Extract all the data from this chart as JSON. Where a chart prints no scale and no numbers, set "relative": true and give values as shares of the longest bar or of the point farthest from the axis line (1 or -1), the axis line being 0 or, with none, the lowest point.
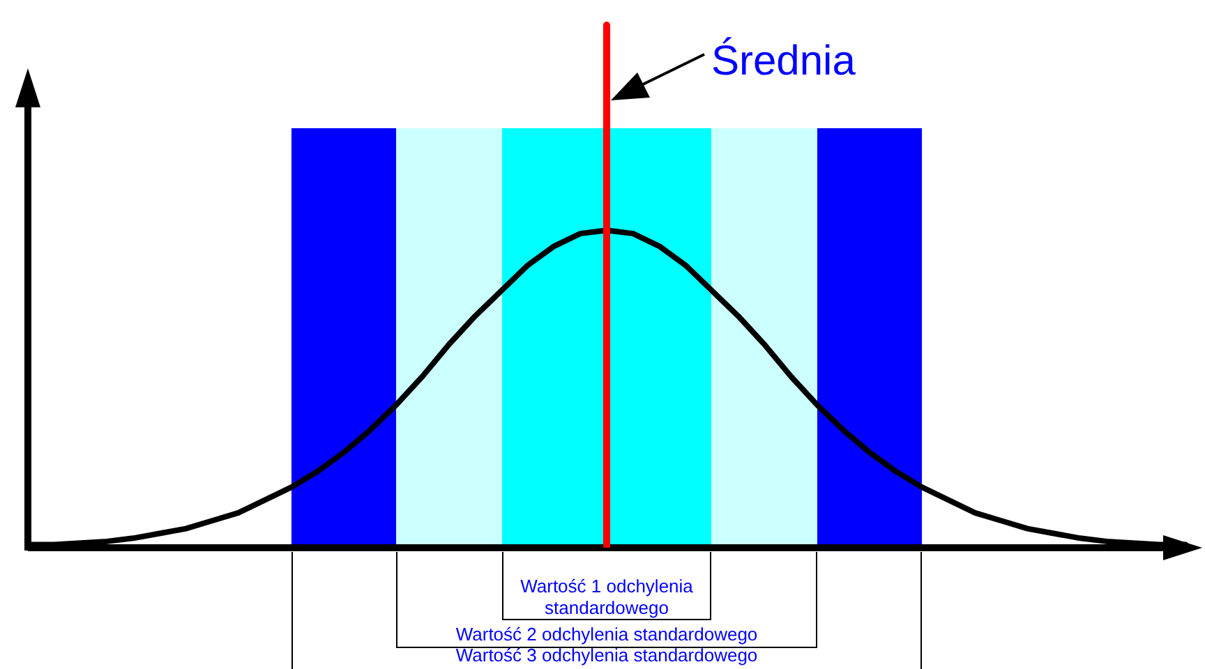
{
  "chart_data": {
    "type": "line",
    "relative": true,
    "legend": false,
    "marker": "none",
    "line_style": "solid",
    "categories": [
      null,
      null,
      null,
      null,
      null,
      null,
      null,
      null,
      null,
      null,
      null,
      null,
      null,
      null,
      null,
      null,
      null,
      null,
      null,
      null,
      null,
      null,
      null,
      null,
      null,
      null,
      null,
      null,
      null,
      null,
      null,
      null,
      null,
      null,
      null,
      null,
      null,
      null,
      null,
      null,
      null,
      null,
      null,
      null,
      null
    ],
    "series": [
      {
        "color": "#000000",
        "values": [
          0.01,
          0.01,
          0.015,
          0.02,
          0.03,
          0.045,
          0.06,
          0.085,
          0.11,
          0.15,
          0.19,
          0.24,
          0.3,
          0.37,
          0.45,
          0.54,
          0.64,
          0.73,
          0.81,
          0.89,
          0.95,
          0.99,
          1,
          0.99,
          0.95,
          0.89,
          0.81,
          0.73,
          0.64,
          0.54,
          0.45,
          0.37,
          0.3,
          0.24,
          0.19,
          0.15,
          0.11,
          0.085,
          0.06,
          0.045,
          0.03,
          0.02,
          0.015,
          0.01,
          0.01
        ]
      }
    ],
    "annotations": [
      "Średnia",
      "Wartość 1 odchylenia standardowego",
      "Wartość 2 odchylenia standardowego",
      "Wartość 3 odchylenia standardowego"
    ]
  }
}
